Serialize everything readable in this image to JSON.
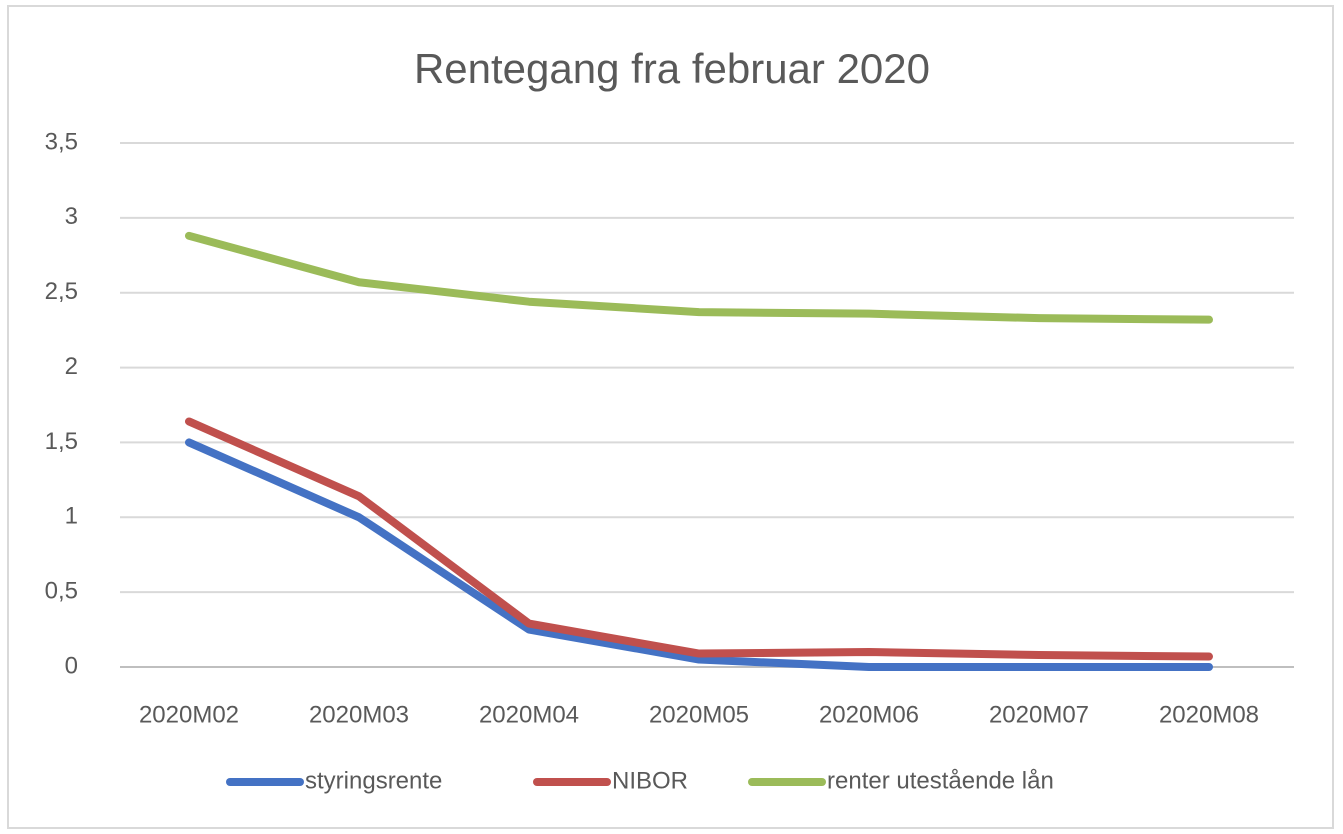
{
  "chart_data": {
    "type": "line",
    "title": "Rentegang fra februar 2020",
    "categories": [
      "2020M02",
      "2020M03",
      "2020M04",
      "2020M05",
      "2020M06",
      "2020M07",
      "2020M08"
    ],
    "series": [
      {
        "name": "styringsrente",
        "color": "#4472c4",
        "values": [
          1.5,
          1.0,
          0.25,
          0.05,
          0,
          0,
          0
        ]
      },
      {
        "name": "NIBOR",
        "color": "#c0504d",
        "values": [
          1.64,
          1.14,
          0.29,
          0.09,
          0.1,
          0.08,
          0.07
        ]
      },
      {
        "name": "renter utestående lån",
        "color": "#9bbb59",
        "values": [
          2.88,
          2.57,
          2.44,
          2.37,
          2.36,
          2.33,
          2.32
        ]
      }
    ],
    "ylim": [
      0,
      3.5
    ],
    "yticks": [
      0,
      {
        "value": 0.5,
        "label": "0,5"
      },
      1,
      {
        "value": 1.5,
        "label": "1,5"
      },
      2,
      {
        "value": 2.5,
        "label": "2,5"
      },
      3,
      {
        "value": 3.5,
        "label": "3,5"
      }
    ],
    "grid": true,
    "legend": "bottom"
  }
}
